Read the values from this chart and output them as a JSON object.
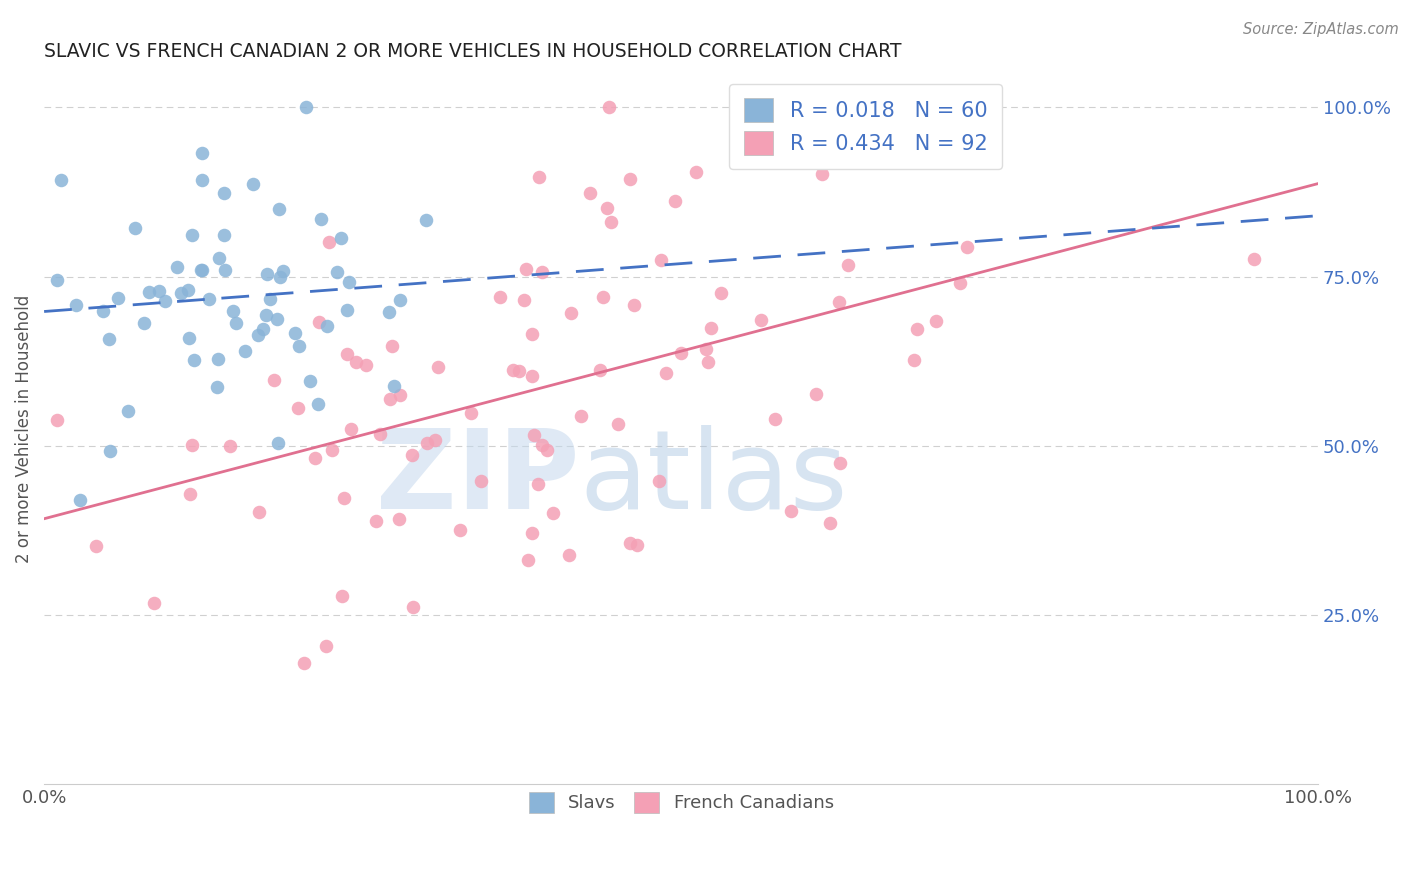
{
  "title": "SLAVIC VS FRENCH CANADIAN 2 OR MORE VEHICLES IN HOUSEHOLD CORRELATION CHART",
  "source": "Source: ZipAtlas.com",
  "ylabel": "2 or more Vehicles in Household",
  "xlim": [
    0,
    1
  ],
  "ylim": [
    0,
    1.05
  ],
  "slavic_color": "#8ab4d8",
  "french_color": "#f4a0b5",
  "slavic_line_color": "#4472c4",
  "french_line_color": "#e07090",
  "slavic_R": 0.018,
  "slavic_N": 60,
  "french_R": 0.434,
  "french_N": 92,
  "watermark_zip": "ZIP",
  "watermark_atlas": "atlas",
  "watermark_color_zip": "#b8cfe8",
  "watermark_color_atlas": "#b0c8e0",
  "legend_slavs": "Slavs",
  "legend_french": "French Canadians",
  "grid_color": "#d0d0d0",
  "grid_yticks": [
    0.25,
    0.5,
    0.75,
    1.0
  ]
}
